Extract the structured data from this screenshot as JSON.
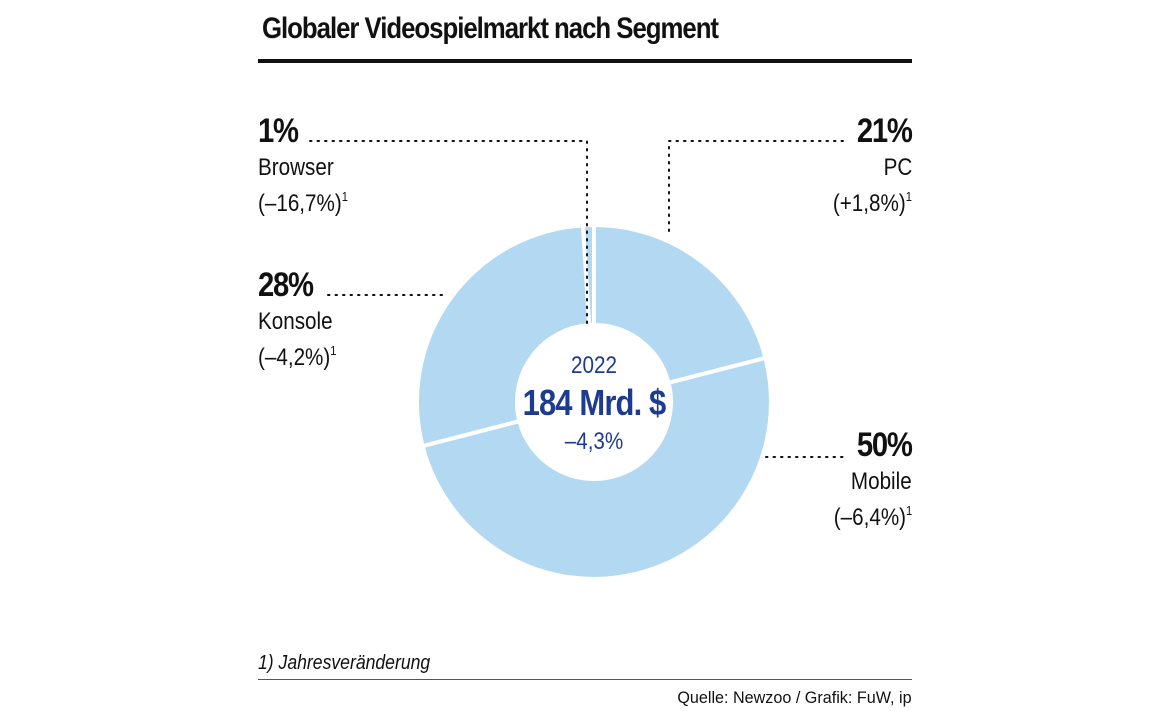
{
  "title": "Globaler Videospielmarkt nach Segment",
  "center": {
    "year": "2022",
    "total": "184 Mrd. $",
    "change": "–4,3%"
  },
  "footnote": "1) Jahresveränderung",
  "source": "Quelle: Newzoo / Grafik: FuW, ip",
  "colors": {
    "slice": "#b3d9f2",
    "center_text": "#1d3c8f",
    "separator": "#ffffff"
  },
  "segments": [
    {
      "name": "Browser",
      "pct_label": "1%",
      "change": "(–16,7%)",
      "footnote_mark": "1"
    },
    {
      "name": "PC",
      "pct_label": "21%",
      "change": "(+1,8%)",
      "footnote_mark": "1"
    },
    {
      "name": "Mobile",
      "pct_label": "50%",
      "change": "(–6,4%)",
      "footnote_mark": "1"
    },
    {
      "name": "Konsole",
      "pct_label": "28%",
      "change": "(–4,2%)",
      "footnote_mark": "1"
    }
  ],
  "chart_data": {
    "type": "pie",
    "variant": "donut",
    "title": "Globaler Videospielmarkt nach Segment",
    "categories": [
      "Browser",
      "PC",
      "Mobile",
      "Konsole"
    ],
    "values": [
      1,
      21,
      50,
      28
    ],
    "unit": "%",
    "changes": [
      "–16,7%",
      "+1,8%",
      "–6,4%",
      "–4,2%"
    ],
    "center_label": {
      "year": "2022",
      "total": "184 Mrd. $",
      "change": "–4,3%"
    }
  }
}
